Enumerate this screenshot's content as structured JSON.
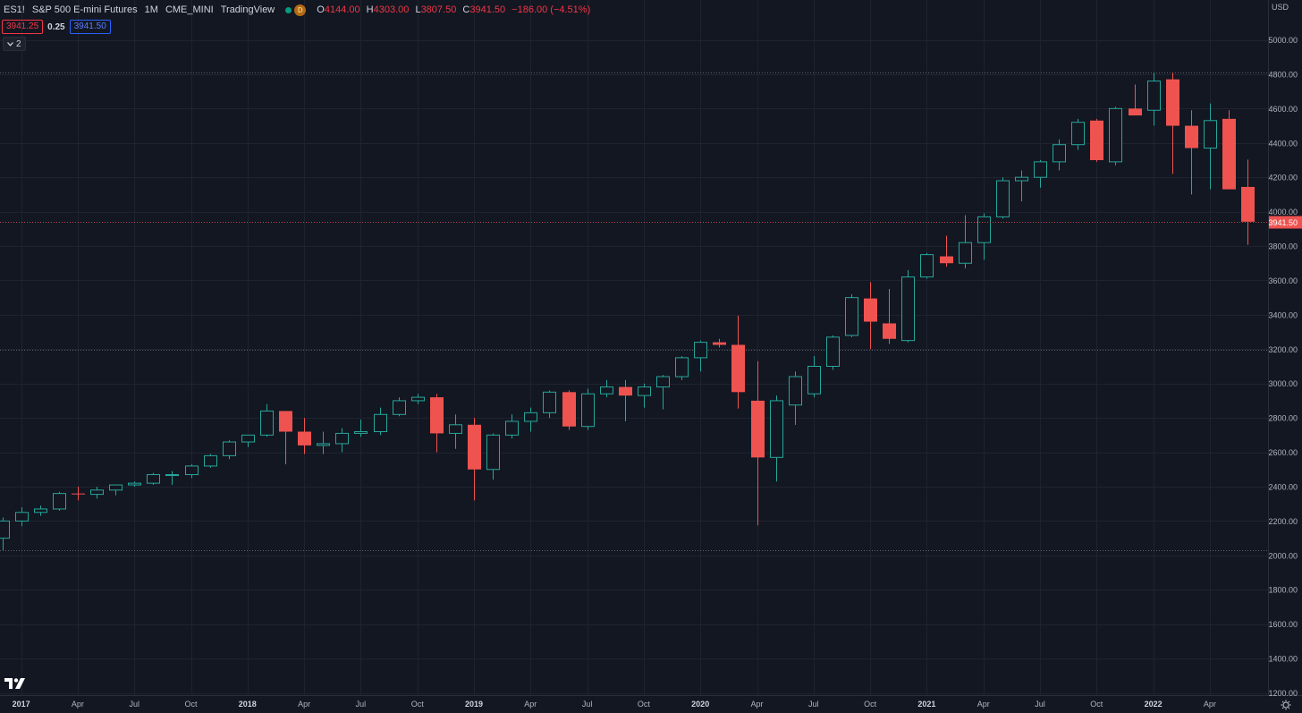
{
  "header": {
    "symbol": "ES1!",
    "description": "S&P 500 E-mini Futures",
    "interval": "1M",
    "exchange": "CME_MINI",
    "source": "TradingView",
    "delay_badge": "D",
    "ohlc": {
      "open_label": "O",
      "open": "4144.00",
      "high_label": "H",
      "high": "4303.00",
      "low_label": "L",
      "low": "3807.50",
      "close_label": "C",
      "close": "3941.50",
      "change": "−186.00 (−4.51%)"
    },
    "bid": "3941.25",
    "spread": "0.25",
    "ask": "3941.50",
    "collapsed_count": "2"
  },
  "axis": {
    "currency": "USD",
    "last_price_label": "3941.50"
  },
  "colors": {
    "background": "#131722",
    "up": "#26a69a",
    "down": "#ef5350",
    "grid": "#1f2330",
    "text": "#d1d4dc"
  },
  "chart_data": {
    "type": "candlestick",
    "symbol": "ES1!",
    "interval": "1M",
    "ylim": [
      1200,
      5000
    ],
    "y_ticks": [
      1200,
      1400,
      1600,
      1800,
      2000,
      2200,
      2400,
      2600,
      2800,
      3000,
      3200,
      3400,
      3600,
      3800,
      4000,
      4200,
      4400,
      4600,
      4800,
      5000
    ],
    "y_tick_labels": [
      "1200.00",
      "1400.00",
      "1600.00",
      "1800.00",
      "2000.00",
      "2200.00",
      "2400.00",
      "2600.00",
      "2800.00",
      "3000.00",
      "3200.00",
      "3400.00",
      "3600.00",
      "3800.00",
      "4000.00",
      "4200.00",
      "4400.00",
      "4600.00",
      "4800.00",
      "5000.00"
    ],
    "x_ticks": [
      {
        "label": "2017",
        "index": 1,
        "bold": true
      },
      {
        "label": "Apr",
        "index": 4
      },
      {
        "label": "Jul",
        "index": 7
      },
      {
        "label": "Oct",
        "index": 10
      },
      {
        "label": "2018",
        "index": 13,
        "bold": true
      },
      {
        "label": "Apr",
        "index": 16
      },
      {
        "label": "Jul",
        "index": 19
      },
      {
        "label": "Oct",
        "index": 22
      },
      {
        "label": "2019",
        "index": 25,
        "bold": true
      },
      {
        "label": "Apr",
        "index": 28
      },
      {
        "label": "Jul",
        "index": 31
      },
      {
        "label": "Oct",
        "index": 34
      },
      {
        "label": "2020",
        "index": 37,
        "bold": true
      },
      {
        "label": "Apr",
        "index": 40
      },
      {
        "label": "Jul",
        "index": 43
      },
      {
        "label": "Oct",
        "index": 46
      },
      {
        "label": "2021",
        "index": 49,
        "bold": true
      },
      {
        "label": "Apr",
        "index": 52
      },
      {
        "label": "Jul",
        "index": 55
      },
      {
        "label": "Oct",
        "index": 58
      },
      {
        "label": "2022",
        "index": 61,
        "bold": true
      },
      {
        "label": "Apr",
        "index": 64
      }
    ],
    "reference_lines": [
      4808,
      3195,
      2030
    ],
    "last_price": 3941.5,
    "candles": [
      {
        "o": 2100,
        "h": 2220,
        "l": 2030,
        "c": 2200
      },
      {
        "o": 2200,
        "h": 2280,
        "l": 2170,
        "c": 2250
      },
      {
        "o": 2250,
        "h": 2290,
        "l": 2230,
        "c": 2270
      },
      {
        "o": 2270,
        "h": 2370,
        "l": 2260,
        "c": 2360
      },
      {
        "o": 2360,
        "h": 2400,
        "l": 2320,
        "c": 2355
      },
      {
        "o": 2355,
        "h": 2400,
        "l": 2330,
        "c": 2380
      },
      {
        "o": 2380,
        "h": 2410,
        "l": 2350,
        "c": 2410
      },
      {
        "o": 2410,
        "h": 2430,
        "l": 2400,
        "c": 2420
      },
      {
        "o": 2420,
        "h": 2480,
        "l": 2410,
        "c": 2470
      },
      {
        "o": 2470,
        "h": 2490,
        "l": 2410,
        "c": 2470
      },
      {
        "o": 2470,
        "h": 2530,
        "l": 2450,
        "c": 2520
      },
      {
        "o": 2520,
        "h": 2590,
        "l": 2510,
        "c": 2580
      },
      {
        "o": 2580,
        "h": 2670,
        "l": 2560,
        "c": 2660
      },
      {
        "o": 2660,
        "h": 2700,
        "l": 2630,
        "c": 2700
      },
      {
        "o": 2700,
        "h": 2880,
        "l": 2690,
        "c": 2840
      },
      {
        "o": 2840,
        "h": 2840,
        "l": 2530,
        "c": 2720
      },
      {
        "o": 2720,
        "h": 2800,
        "l": 2590,
        "c": 2640
      },
      {
        "o": 2640,
        "h": 2720,
        "l": 2590,
        "c": 2650
      },
      {
        "o": 2650,
        "h": 2740,
        "l": 2600,
        "c": 2710
      },
      {
        "o": 2710,
        "h": 2790,
        "l": 2690,
        "c": 2720
      },
      {
        "o": 2720,
        "h": 2860,
        "l": 2700,
        "c": 2820
      },
      {
        "o": 2820,
        "h": 2920,
        "l": 2810,
        "c": 2900
      },
      {
        "o": 2900,
        "h": 2940,
        "l": 2880,
        "c": 2920
      },
      {
        "o": 2920,
        "h": 2940,
        "l": 2600,
        "c": 2710
      },
      {
        "o": 2710,
        "h": 2820,
        "l": 2620,
        "c": 2760
      },
      {
        "o": 2760,
        "h": 2800,
        "l": 2320,
        "c": 2500
      },
      {
        "o": 2500,
        "h": 2710,
        "l": 2440,
        "c": 2700
      },
      {
        "o": 2700,
        "h": 2820,
        "l": 2680,
        "c": 2780
      },
      {
        "o": 2780,
        "h": 2860,
        "l": 2720,
        "c": 2830
      },
      {
        "o": 2830,
        "h": 2960,
        "l": 2800,
        "c": 2950
      },
      {
        "o": 2950,
        "h": 2960,
        "l": 2730,
        "c": 2750
      },
      {
        "o": 2750,
        "h": 2970,
        "l": 2730,
        "c": 2940
      },
      {
        "o": 2940,
        "h": 3020,
        "l": 2920,
        "c": 2980
      },
      {
        "o": 2980,
        "h": 3020,
        "l": 2780,
        "c": 2930
      },
      {
        "o": 2930,
        "h": 3000,
        "l": 2860,
        "c": 2980
      },
      {
        "o": 2980,
        "h": 3050,
        "l": 2850,
        "c": 3040
      },
      {
        "o": 3040,
        "h": 3160,
        "l": 3020,
        "c": 3150
      },
      {
        "o": 3150,
        "h": 3250,
        "l": 3070,
        "c": 3240
      },
      {
        "o": 3240,
        "h": 3260,
        "l": 3210,
        "c": 3225
      },
      {
        "o": 3225,
        "h": 3395,
        "l": 2855,
        "c": 2950
      },
      {
        "o": 2900,
        "h": 3130,
        "l": 2175,
        "c": 2570
      },
      {
        "o": 2570,
        "h": 2930,
        "l": 2430,
        "c": 2900
      },
      {
        "o": 2875,
        "h": 3070,
        "l": 2760,
        "c": 3040
      },
      {
        "o": 2940,
        "h": 3160,
        "l": 2920,
        "c": 3100
      },
      {
        "o": 3100,
        "h": 3280,
        "l": 3080,
        "c": 3270
      },
      {
        "o": 3280,
        "h": 3520,
        "l": 3270,
        "c": 3500
      },
      {
        "o": 3495,
        "h": 3590,
        "l": 3200,
        "c": 3360
      },
      {
        "o": 3350,
        "h": 3550,
        "l": 3230,
        "c": 3260
      },
      {
        "o": 3250,
        "h": 3660,
        "l": 3240,
        "c": 3620
      },
      {
        "o": 3620,
        "h": 3760,
        "l": 3610,
        "c": 3750
      },
      {
        "o": 3740,
        "h": 3860,
        "l": 3680,
        "c": 3700
      },
      {
        "o": 3700,
        "h": 3980,
        "l": 3670,
        "c": 3820
      },
      {
        "o": 3820,
        "h": 3990,
        "l": 3720,
        "c": 3970
      },
      {
        "o": 3970,
        "h": 4200,
        "l": 3960,
        "c": 4180
      },
      {
        "o": 4180,
        "h": 4240,
        "l": 4060,
        "c": 4200
      },
      {
        "o": 4200,
        "h": 4300,
        "l": 4140,
        "c": 4290
      },
      {
        "o": 4290,
        "h": 4420,
        "l": 4240,
        "c": 4390
      },
      {
        "o": 4390,
        "h": 4540,
        "l": 4360,
        "c": 4520
      },
      {
        "o": 4530,
        "h": 4540,
        "l": 4290,
        "c": 4300
      },
      {
        "o": 4290,
        "h": 4610,
        "l": 4270,
        "c": 4600
      },
      {
        "o": 4600,
        "h": 4740,
        "l": 4560,
        "c": 4560
      },
      {
        "o": 4590,
        "h": 4810,
        "l": 4500,
        "c": 4760
      },
      {
        "o": 4770,
        "h": 4810,
        "l": 4220,
        "c": 4500
      },
      {
        "o": 4500,
        "h": 4590,
        "l": 4100,
        "c": 4370
      },
      {
        "o": 4370,
        "h": 4630,
        "l": 4130,
        "c": 4530
      },
      {
        "o": 4540,
        "h": 4590,
        "l": 4130,
        "c": 4130
      },
      {
        "o": 4144,
        "h": 4303,
        "l": 3807.5,
        "c": 3941.5
      }
    ]
  }
}
